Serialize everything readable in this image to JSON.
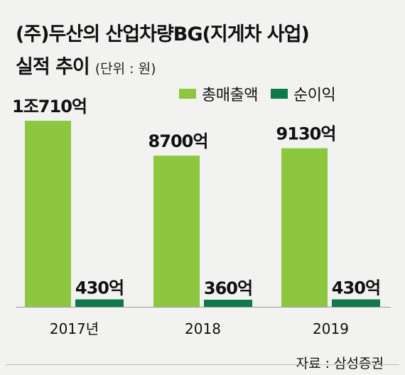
{
  "title": {
    "line1": "(주)두산의 산업차량BG(지게차 사업)",
    "line2": "실적 추이",
    "unit": "(단위 : 원)"
  },
  "source": "자료 : 삼성증권",
  "colors": {
    "revenue": "#8dc63f",
    "profit": "#0e7a4a"
  },
  "chart_data": {
    "type": "bar",
    "categories": [
      "2017년",
      "2018",
      "2019"
    ],
    "series": [
      {
        "name": "총매출액",
        "values": [
          10710,
          8700,
          9130
        ],
        "labels": [
          "1조710억",
          "8700억",
          "9130억"
        ]
      },
      {
        "name": "순이익",
        "values": [
          430,
          360,
          430
        ],
        "labels": [
          "430억",
          "360억",
          "430억"
        ]
      }
    ],
    "unit": "억원",
    "legend": "top-right"
  }
}
